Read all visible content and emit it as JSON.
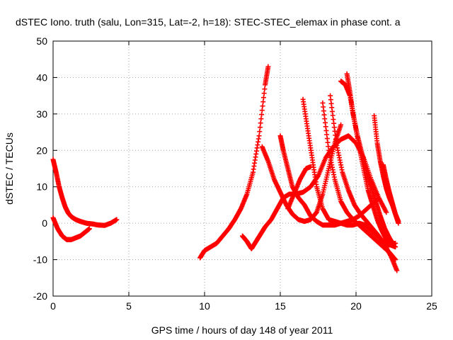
{
  "chart_data": {
    "type": "scatter",
    "title": "dSTEC Iono. truth (salu, Lon=315, Lat=-2, h=18): STEC-STEC_elemax in phase cont. a",
    "xlabel": "GPS time / hours of day 148 of year 2011",
    "ylabel": "dSTEC  / TECUs",
    "xlim": [
      0,
      25
    ],
    "ylim": [
      -20,
      50
    ],
    "xticks": [
      "0",
      "5",
      "10",
      "15",
      "20",
      "25"
    ],
    "yticks": [
      "-20",
      "-10",
      "0",
      "10",
      "20",
      "30",
      "40",
      "50"
    ],
    "grid": true,
    "marker": "plus",
    "color": "#ff0000",
    "series": [
      {
        "x": [
          0.0,
          0.2,
          0.4,
          0.6,
          0.8,
          1.0,
          1.2,
          1.5,
          1.8,
          2.2,
          2.6,
          3.0,
          3.4,
          3.8,
          4.2
        ],
        "y": [
          17.5,
          14,
          10,
          7,
          4.5,
          2.8,
          1.8,
          1.0,
          0.5,
          0.0,
          -0.2,
          -0.5,
          -0.6,
          0.0,
          1.0
        ]
      },
      {
        "x": [
          0.0,
          0.3,
          0.6,
          0.9,
          1.2,
          1.5,
          1.8,
          2.1,
          2.4
        ],
        "y": [
          1.5,
          -1.5,
          -3.5,
          -4.5,
          -4.5,
          -4.0,
          -3.5,
          -2.5,
          -1.5
        ]
      },
      {
        "x": [
          9.7,
          10.0,
          10.4,
          10.8,
          11.2,
          11.6,
          12.0,
          12.4,
          12.8,
          13.2,
          13.6,
          14.0,
          14.2
        ],
        "y": [
          -9.5,
          -7.5,
          -6.5,
          -5.5,
          -3.5,
          -1.5,
          1.0,
          4.0,
          8.0,
          14.0,
          24.0,
          38.0,
          43.0
        ]
      },
      {
        "x": [
          12.5,
          12.8,
          13.1,
          13.4,
          13.7,
          14.0,
          14.4,
          14.8,
          15.2,
          15.6,
          16.0,
          16.5,
          17.0,
          17.5,
          18.0,
          18.5,
          19.0,
          19.5,
          20.0,
          20.5,
          21.0,
          21.5,
          22.0
        ],
        "y": [
          -3.5,
          -5.0,
          -7.0,
          -5.0,
          -3.0,
          -1.0,
          1.0,
          4.0,
          7.0,
          8.0,
          8.0,
          8.5,
          10.0,
          13.0,
          18.0,
          21.0,
          23.0,
          24.0,
          22.0,
          18.0,
          12.0,
          7.0,
          3.0
        ]
      },
      {
        "x": [
          13.8,
          14.2,
          14.6,
          15.0,
          15.4,
          15.8,
          16.2,
          16.6,
          17.0,
          17.4,
          17.8,
          18.2,
          18.6,
          19.0
        ],
        "y": [
          21.0,
          17.0,
          12.0,
          8.5,
          5.0,
          2.5,
          1.0,
          0.5,
          1.0,
          3.0,
          8.0,
          15.0,
          22.0,
          27.0
        ]
      },
      {
        "x": [
          15.0,
          15.2,
          15.5,
          15.8,
          16.2,
          16.6,
          17.0,
          17.4,
          17.8,
          18.2,
          18.6,
          19.0,
          19.4,
          19.8,
          20.2,
          20.6,
          21.0,
          21.4
        ],
        "y": [
          24.0,
          20.0,
          15.0,
          10.0,
          7.0,
          5.0,
          2.0,
          0.5,
          -0.5,
          -0.5,
          -0.5,
          0.0,
          0.5,
          1.0,
          2.0,
          3.5,
          5.0,
          6.5
        ]
      },
      {
        "x": [
          15.5,
          15.9,
          16.3,
          16.7,
          17.0
        ],
        "y": [
          4.0,
          8.0,
          12.0,
          15.0,
          15.5
        ]
      },
      {
        "x": [
          16.5,
          16.8,
          17.1,
          17.4,
          17.8,
          18.2,
          18.6,
          19.0,
          19.4,
          19.8,
          20.2,
          20.6,
          21.0,
          21.4,
          21.8,
          22.2,
          22.6
        ],
        "y": [
          34.0,
          26.0,
          18.0,
          10.0,
          4.0,
          1.0,
          0.5,
          0.0,
          -0.5,
          -0.5,
          0.0,
          -0.5,
          -2.0,
          -3.5,
          -5.0,
          -6.0,
          -5.5
        ]
      },
      {
        "x": [
          17.8,
          18.2,
          18.6,
          19.0,
          19.4,
          19.8,
          20.2,
          20.6,
          21.0,
          21.4,
          21.8,
          22.2,
          22.6
        ],
        "y": [
          33.0,
          20.0,
          12.0,
          6.0,
          3.0,
          1.0,
          -0.5,
          -2.0,
          -3.5,
          -5.0,
          -6.5,
          -8.0,
          -10.0
        ]
      },
      {
        "x": [
          18.3,
          18.7,
          19.1,
          19.5,
          19.9,
          20.3,
          20.7,
          21.1,
          21.5,
          21.9,
          22.3,
          22.7
        ],
        "y": [
          35.0,
          22.0,
          14.0,
          9.0,
          5.0,
          2.5,
          0.5,
          -1.5,
          -3.5,
          -6.0,
          -9.0,
          -13.0
        ]
      },
      {
        "x": [
          19.0,
          19.3,
          19.6,
          19.9,
          20.2,
          20.5,
          20.8,
          21.1,
          21.4,
          21.7,
          22.0,
          22.3,
          22.6
        ],
        "y": [
          39.0,
          38.0,
          35.0,
          28.0,
          21.0,
          15.0,
          9.0,
          5.0,
          1.0,
          -2.0,
          -4.5,
          -6.0,
          -6.5
        ]
      },
      {
        "x": [
          19.4,
          19.6,
          19.8,
          20.1,
          20.4,
          20.7,
          21.0,
          21.3,
          21.6,
          21.9,
          22.2,
          22.5
        ],
        "y": [
          41.0,
          36.0,
          30.0,
          24.0,
          19.0,
          14.0,
          10.0,
          6.0,
          2.0,
          -1.5,
          -4.0,
          -6.0
        ]
      },
      {
        "x": [
          21.2,
          21.4,
          21.6,
          21.8,
          22.0,
          22.2,
          22.4,
          22.6,
          22.8
        ],
        "y": [
          29.5,
          22.0,
          17.0,
          13.0,
          9.5,
          7.0,
          5.0,
          2.5,
          0.0
        ]
      },
      {
        "x": [
          21.8,
          22.0,
          22.2,
          22.4,
          22.6,
          22.8
        ],
        "y": [
          16.0,
          12.0,
          8.5,
          5.5,
          2.5,
          0.5
        ]
      }
    ]
  }
}
